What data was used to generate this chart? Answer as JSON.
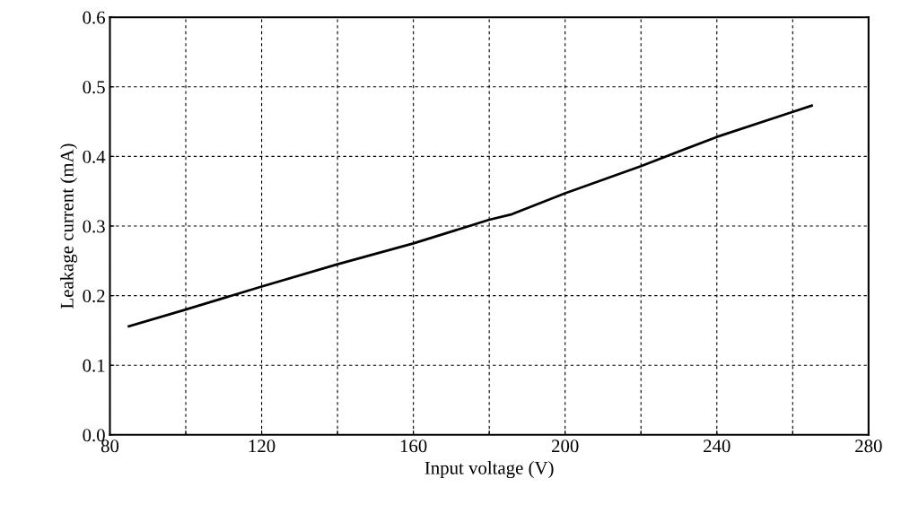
{
  "chart_data": {
    "type": "line",
    "xlabel": "Input voltage (V)",
    "ylabel": "Leakage current (mA)",
    "x": [
      85,
      100,
      120,
      140,
      160,
      180,
      186,
      200,
      220,
      240,
      260,
      265
    ],
    "series": [
      {
        "color": "#000000",
        "values": [
          0.156,
          0.18,
          0.213,
          0.245,
          0.275,
          0.309,
          0.317,
          0.347,
          0.386,
          0.428,
          0.464,
          0.473
        ]
      }
    ],
    "xlim": [
      80,
      280
    ],
    "xticks": [
      80,
      {
        "value": 100,
        "label": null
      },
      120,
      {
        "value": 140,
        "label": null
      },
      160,
      {
        "value": 180,
        "label": null
      },
      200,
      {
        "value": 220,
        "label": null
      },
      240,
      {
        "value": 260,
        "label": null
      },
      280
    ],
    "ylim": [
      0,
      0.6
    ],
    "yticks": [
      {
        "value": 0,
        "label": "0.0"
      },
      0.1,
      0.2,
      0.3,
      0.4,
      0.5,
      0.6
    ],
    "grid": true,
    "line_style": "solid",
    "marker": "none"
  }
}
